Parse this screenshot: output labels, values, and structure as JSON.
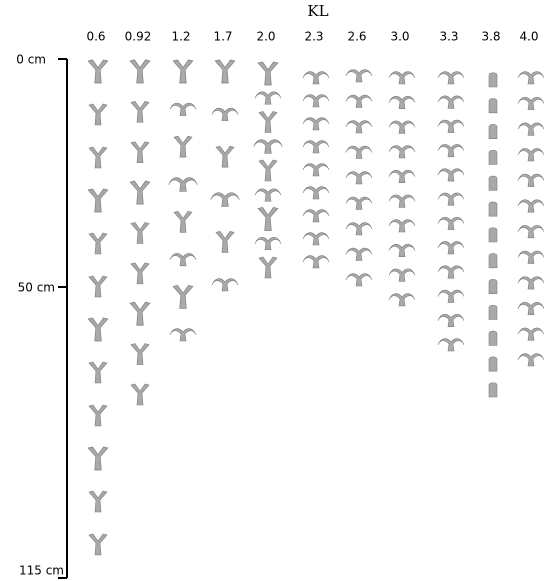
{
  "title": "KL",
  "columns": [
    "0.6",
    "0.92",
    "1.2",
    "1.7",
    "2.0",
    "2.3",
    "2.6",
    "3.0",
    "3.3",
    "3.8",
    "4.0"
  ],
  "axis_labels": [
    "0 cm",
    "50 cm",
    "115 cm"
  ]
}
